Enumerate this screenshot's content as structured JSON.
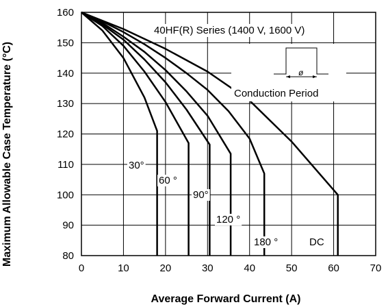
{
  "chart_data": {
    "type": "line",
    "title": "40HF(R) Series (1400 V, 1600 V)",
    "xlabel": "Average Forward Current (A)",
    "ylabel": "Maximum Allowable Case Temperature (°C)",
    "xlim": [
      0,
      70
    ],
    "ylim": [
      80,
      160
    ],
    "xticks": [
      "0",
      "10",
      "20",
      "30",
      "40",
      "50",
      "60",
      "70"
    ],
    "yticks": [
      "80",
      "90",
      "100",
      "110",
      "120",
      "130",
      "140",
      "150",
      "160"
    ],
    "grid": true,
    "series": [
      {
        "name": "30°",
        "x": [
          0,
          5,
          10,
          15,
          18,
          18
        ],
        "y": [
          160,
          154,
          145,
          132,
          121,
          80
        ]
      },
      {
        "name": "60 °",
        "x": [
          0,
          5,
          10,
          15,
          20,
          25.5,
          25.5
        ],
        "y": [
          160,
          155.5,
          149,
          140.5,
          130.5,
          117,
          80
        ]
      },
      {
        "name": "90°",
        "x": [
          0,
          5,
          10,
          15,
          20,
          25,
          30.5,
          30.5
        ],
        "y": [
          160,
          156,
          151,
          144.5,
          137,
          128,
          116.5,
          80
        ]
      },
      {
        "name": "120 °",
        "x": [
          0,
          5,
          10,
          15,
          20,
          25,
          30,
          35.5,
          35.5
        ],
        "y": [
          160,
          156.5,
          152,
          147,
          141,
          134,
          126,
          113.5,
          80
        ]
      },
      {
        "name": "180 °",
        "x": [
          0,
          5,
          10,
          15,
          20,
          25,
          30,
          35,
          40,
          43.5,
          43.5
        ],
        "y": [
          160,
          157,
          153.5,
          149.5,
          145,
          140,
          134.5,
          127.5,
          118.5,
          107,
          80
        ]
      },
      {
        "name": "DC",
        "x": [
          0,
          10,
          20,
          30,
          40,
          50,
          61,
          61
        ],
        "y": [
          160,
          154.5,
          148,
          140.5,
          131,
          117.5,
          100,
          80
        ]
      }
    ],
    "inset_label": "Conduction Period",
    "inset_symbol": "ø"
  }
}
